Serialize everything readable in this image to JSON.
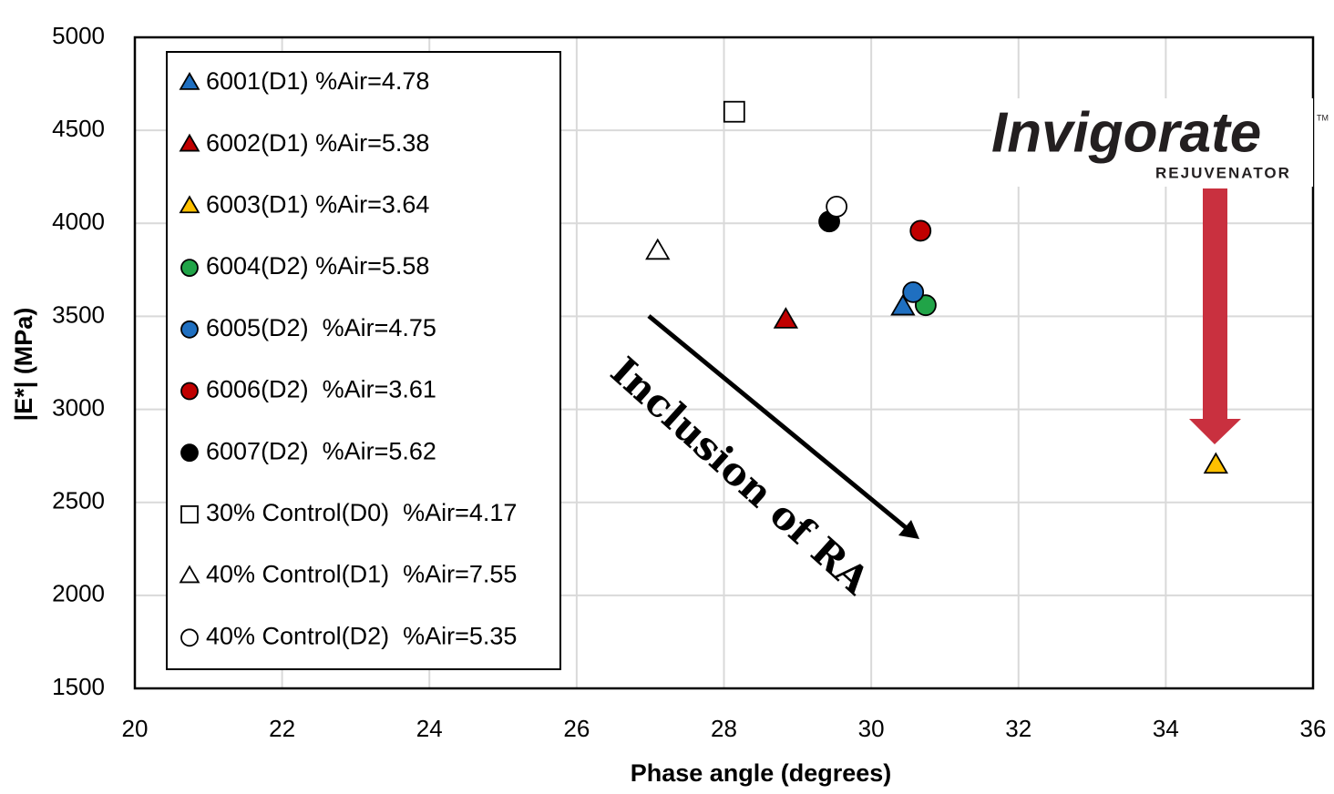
{
  "chart_data": {
    "type": "scatter",
    "x_label": "Phase angle (degrees)",
    "y_label": "|E*| (MPa)",
    "xlim": [
      20,
      36
    ],
    "ylim": [
      1500,
      5000
    ],
    "xticks": [
      20,
      22,
      24,
      26,
      28,
      30,
      32,
      34,
      36
    ],
    "yticks": [
      1500,
      2000,
      2500,
      3000,
      3500,
      4000,
      4500,
      5000
    ],
    "grid": true,
    "legend": "upper left",
    "series": [
      {
        "name": "6001(D1) %Air=4.78",
        "color": "#1f6fc0",
        "marker": "triangle",
        "x": [
          30.43
        ],
        "values": [
          3550
        ]
      },
      {
        "name": "6002(D1) %Air=5.38",
        "color": "#c00000",
        "marker": "triangle",
        "x": [
          28.84
        ],
        "values": [
          3480
        ]
      },
      {
        "name": "6003(D1) %Air=3.64",
        "color": "#ffc000",
        "marker": "triangle",
        "x": [
          34.68
        ],
        "values": [
          2700
        ]
      },
      {
        "name": "6004(D2) %Air=5.58",
        "color": "#21a448",
        "marker": "circle",
        "x": [
          30.74
        ],
        "values": [
          3560
        ]
      },
      {
        "name": "6005(D2)  %Air=4.75",
        "color": "#1f6fc0",
        "marker": "circle",
        "x": [
          30.57
        ],
        "values": [
          3630
        ]
      },
      {
        "name": "6006(D2)  %Air=3.61",
        "color": "#c00000",
        "marker": "circle",
        "x": [
          30.67
        ],
        "values": [
          3960
        ]
      },
      {
        "name": "6007(D2)  %Air=5.62",
        "color": "#000000",
        "marker": "circle",
        "x": [
          29.43
        ],
        "values": [
          4010
        ]
      },
      {
        "name": "30% Control(D0)  %Air=4.17",
        "color": "#ffffff",
        "marker": "square",
        "x": [
          28.14
        ],
        "values": [
          4600
        ]
      },
      {
        "name": "40% Control(D1)  %Air=7.55",
        "color": "#ffffff",
        "marker": "triangle",
        "x": [
          27.1
        ],
        "values": [
          3850
        ]
      },
      {
        "name": "40% Control(D2)  %Air=5.35",
        "color": "#ffffff",
        "marker": "circle",
        "x": [
          29.53
        ],
        "values": [
          4090
        ]
      }
    ],
    "annotations": [
      "Inclusion of RA"
    ],
    "logo": {
      "name": "Invigorate",
      "tagline": "REJUVENATOR",
      "tm": "TM"
    }
  }
}
